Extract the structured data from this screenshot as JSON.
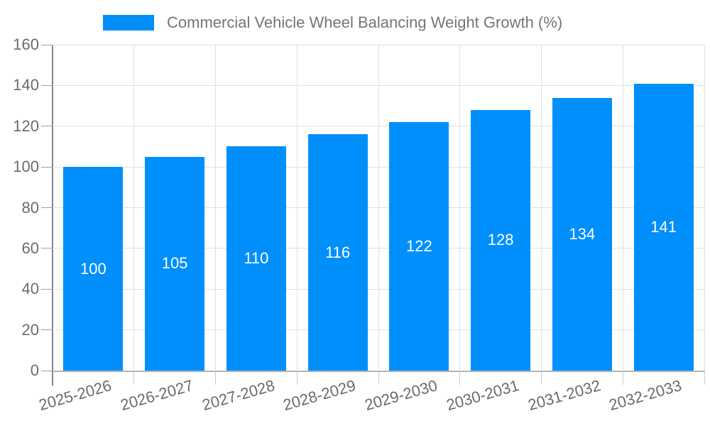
{
  "chart_data": {
    "type": "bar",
    "title": "Commercial Vehicle Wheel Balancing Weight Growth (%)",
    "categories": [
      "2025-2026",
      "2026-2027",
      "2027-2028",
      "2028-2029",
      "2029-2030",
      "2030-2031",
      "2031-2032",
      "2032-2033"
    ],
    "values": [
      100,
      105,
      110,
      116,
      122,
      128,
      134,
      141
    ],
    "bar_value_labels": [
      "100",
      "105",
      "110",
      "116",
      "122",
      "128",
      "134",
      "141"
    ],
    "xlabel": "",
    "ylabel": "",
    "ylim": [
      0,
      160
    ],
    "yticks": [
      0,
      20,
      40,
      60,
      80,
      100,
      120,
      140,
      160
    ],
    "ytick_labels": [
      "0",
      "20",
      "40",
      "60",
      "80",
      "100",
      "120",
      "140",
      "160"
    ],
    "grid": "on",
    "legend_position": "top",
    "colors": {
      "bar": "#008FFB",
      "bar_label_text": "#FFFFFF",
      "legend_text": "#757575",
      "axis_text": "#6B6B6B",
      "gridline": "#E0E0E0",
      "y_axis_line": "#858585",
      "x_axis_line": "#B3B3B3",
      "y_tick": "#9E9E9E",
      "x_tick": "#CCCCCC",
      "background": "#FFFFFF"
    }
  }
}
